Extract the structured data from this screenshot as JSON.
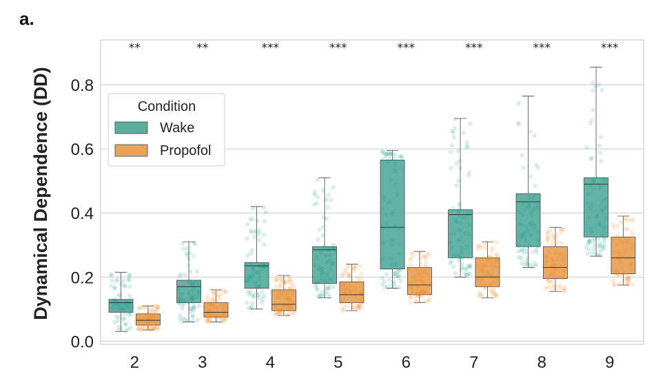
{
  "panel_label": "a.",
  "chart_data": {
    "type": "box",
    "title": "",
    "xlabel": "",
    "ylabel": "Dynamical Dependence (DD)",
    "ylim": [
      -0.01,
      0.94
    ],
    "yticks": [
      "0.0",
      "0.2",
      "0.4",
      "0.6",
      "0.8"
    ],
    "categories": [
      "2",
      "3",
      "4",
      "5",
      "6",
      "7",
      "8",
      "9"
    ],
    "significance": [
      "**",
      "**",
      "***",
      "***",
      "***",
      "***",
      "***",
      "***"
    ],
    "legend": {
      "title": "Condition",
      "position": "upper-left"
    },
    "series": [
      {
        "name": "Wake",
        "color": "#5aaea0",
        "point_color": "#1a9e86",
        "boxes": [
          {
            "min": 0.03,
            "q1": 0.09,
            "median": 0.12,
            "q3": 0.13,
            "max": 0.215
          },
          {
            "min": 0.06,
            "q1": 0.12,
            "median": 0.17,
            "q3": 0.19,
            "max": 0.31
          },
          {
            "min": 0.1,
            "q1": 0.165,
            "median": 0.235,
            "q3": 0.245,
            "max": 0.42
          },
          {
            "min": 0.135,
            "q1": 0.18,
            "median": 0.285,
            "q3": 0.295,
            "max": 0.51
          },
          {
            "min": 0.165,
            "q1": 0.225,
            "median": 0.355,
            "q3": 0.565,
            "max": 0.595
          },
          {
            "min": 0.2,
            "q1": 0.26,
            "median": 0.395,
            "q3": 0.41,
            "max": 0.695
          },
          {
            "min": 0.23,
            "q1": 0.295,
            "median": 0.435,
            "q3": 0.46,
            "max": 0.765
          },
          {
            "min": 0.265,
            "q1": 0.325,
            "median": 0.49,
            "q3": 0.51,
            "max": 0.855
          }
        ]
      },
      {
        "name": "Propofol",
        "color": "#e8a35b",
        "point_color": "#f08a1e",
        "boxes": [
          {
            "min": 0.035,
            "q1": 0.05,
            "median": 0.065,
            "q3": 0.085,
            "max": 0.11
          },
          {
            "min": 0.06,
            "q1": 0.075,
            "median": 0.09,
            "q3": 0.12,
            "max": 0.16
          },
          {
            "min": 0.08,
            "q1": 0.095,
            "median": 0.115,
            "q3": 0.16,
            "max": 0.205
          },
          {
            "min": 0.095,
            "q1": 0.12,
            "median": 0.145,
            "q3": 0.185,
            "max": 0.24
          },
          {
            "min": 0.12,
            "q1": 0.145,
            "median": 0.175,
            "q3": 0.23,
            "max": 0.28
          },
          {
            "min": 0.135,
            "q1": 0.17,
            "median": 0.2,
            "q3": 0.26,
            "max": 0.31
          },
          {
            "min": 0.155,
            "q1": 0.195,
            "median": 0.23,
            "q3": 0.295,
            "max": 0.355
          },
          {
            "min": 0.175,
            "q1": 0.21,
            "median": 0.26,
            "q3": 0.325,
            "max": 0.39
          }
        ]
      }
    ]
  }
}
